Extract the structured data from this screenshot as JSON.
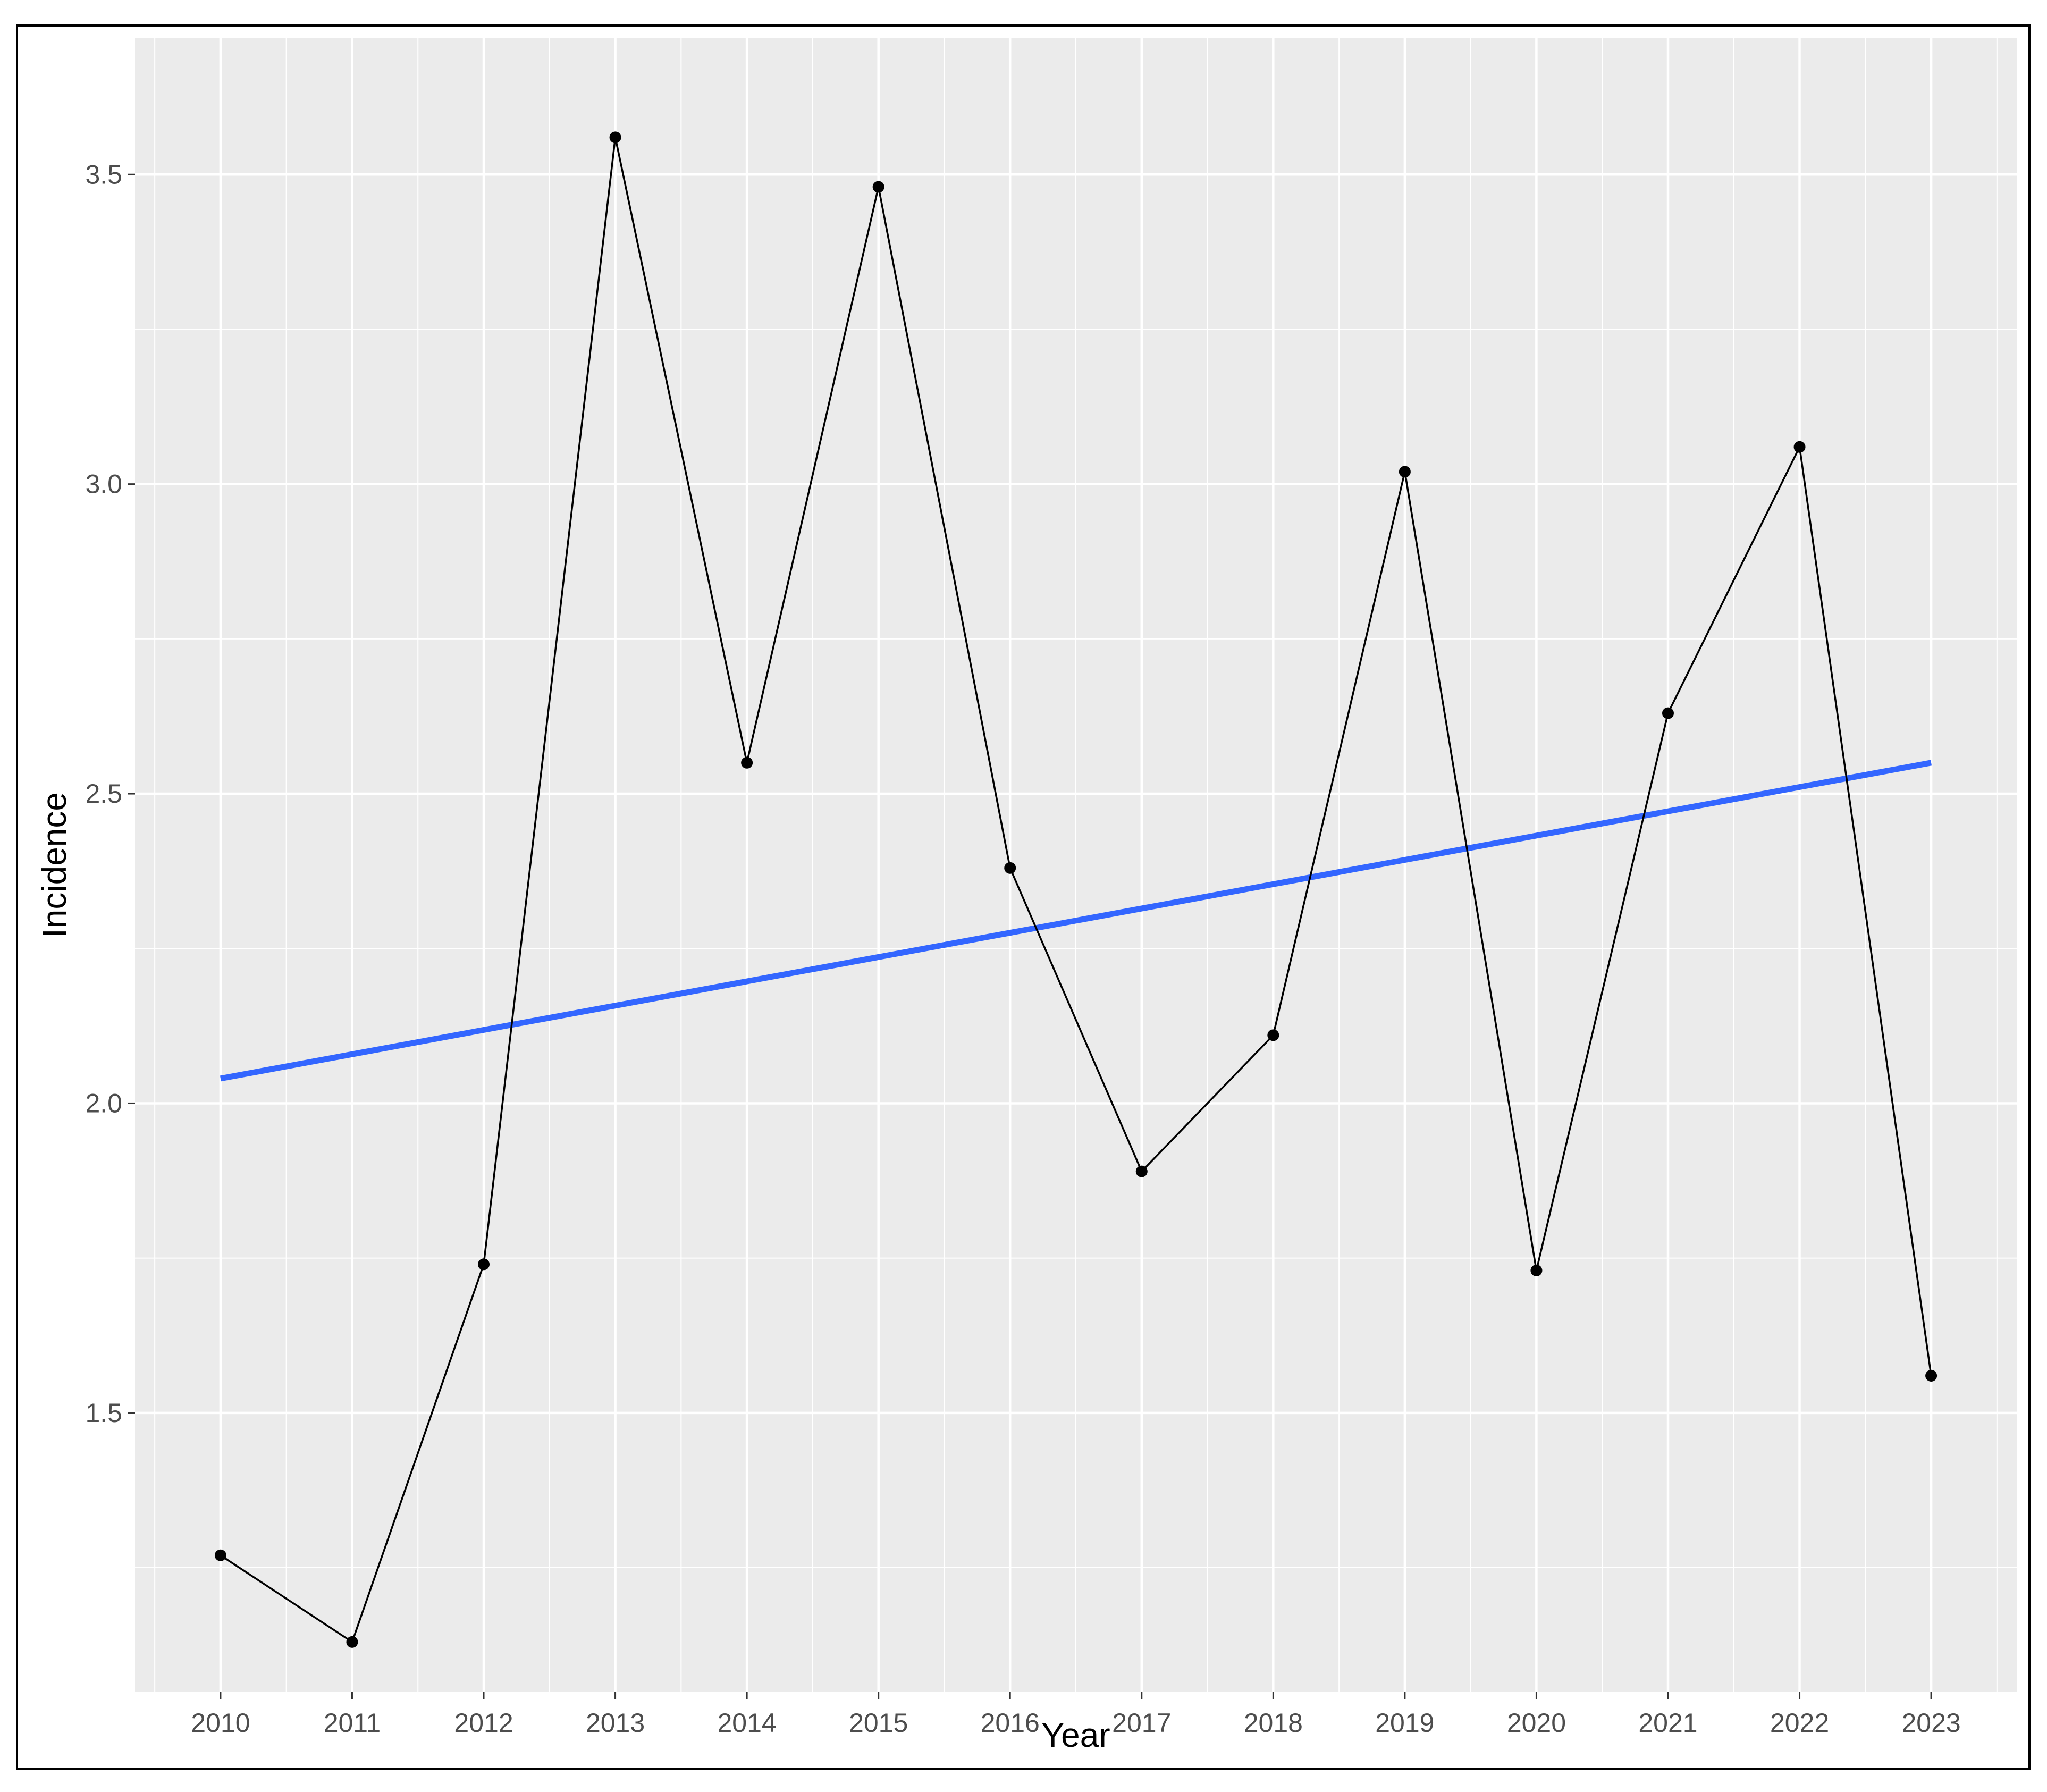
{
  "chart_data": {
    "type": "line",
    "title": "",
    "xlabel": "Year",
    "ylabel": "Incidence",
    "x": [
      2010,
      2011,
      2012,
      2013,
      2014,
      2015,
      2016,
      2017,
      2018,
      2019,
      2020,
      2021,
      2022,
      2023
    ],
    "x_tick_labels": [
      "2010",
      "2011",
      "2012",
      "2013",
      "2014",
      "2015",
      "2016",
      "2017",
      "2018",
      "2019",
      "2020",
      "2021",
      "2022",
      "2023"
    ],
    "xlim": [
      2009.35,
      2023.65
    ],
    "ylim": [
      1.05,
      3.72
    ],
    "y_ticks": [
      1.5,
      2.0,
      2.5,
      3.0,
      3.5
    ],
    "y_tick_labels": [
      "1.5",
      "2.0",
      "2.5",
      "3.0",
      "3.5"
    ],
    "grid": true,
    "series": [
      {
        "values": [
          1.27,
          1.13,
          1.74,
          3.56,
          2.55,
          3.48,
          2.38,
          1.89,
          2.11,
          3.02,
          1.73,
          2.63,
          3.06,
          1.56
        ],
        "color": "#000000",
        "markers": true
      }
    ],
    "trend_line": {
      "type": "linear",
      "x": [
        2010,
        2023
      ],
      "y": [
        2.04,
        2.55
      ],
      "color": "#3366FF"
    },
    "panel_background": "#EBEBEB",
    "grid_color": "#FFFFFF"
  }
}
